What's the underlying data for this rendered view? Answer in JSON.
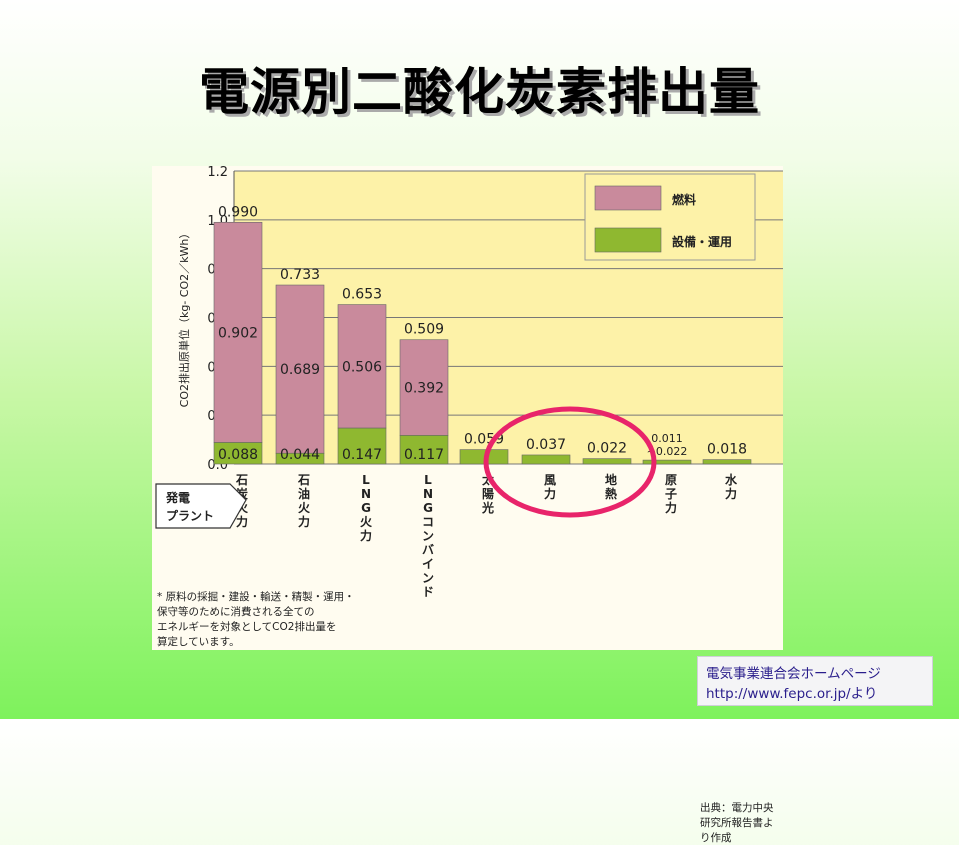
{
  "title": "電源別二酸化炭素排出量",
  "chart_data": {
    "type": "bar",
    "ylabel": "CO2排出原単位（kg- CO2／kWh）",
    "ylim": [
      0,
      1.2
    ],
    "yticks": [
      "0.0",
      "0.2",
      "0.4",
      "0.6",
      "0.8",
      "1.0",
      "1.2"
    ],
    "grid": true,
    "x_axis_title": "発電\nプラント",
    "categories": [
      "石炭火力",
      "石油火力",
      "LNG火力",
      "LNGコンバインド",
      "太陽光",
      "風力",
      "地熱",
      "原子力",
      "水力"
    ],
    "series": [
      {
        "name": "燃料",
        "color": "#c98a9c",
        "values": [
          0.902,
          0.689,
          0.506,
          0.392,
          0,
          0,
          0,
          0,
          0
        ],
        "labels": [
          "0.902",
          "0.689",
          "0.506",
          "0.392",
          "",
          "",
          "",
          "",
          ""
        ]
      },
      {
        "name": "設備・運用",
        "color": "#8fb830",
        "values": [
          0.088,
          0.044,
          0.147,
          0.117,
          0.059,
          0.037,
          0.022,
          0.016,
          0.018
        ],
        "labels": [
          "0.088",
          "0.044",
          "0.147",
          "0.117",
          "",
          "",
          "",
          "",
          ""
        ]
      }
    ],
    "totals": [
      "0.990",
      "0.733",
      "0.653",
      "0.509",
      "0.059",
      "0.037",
      "0.022",
      "0.011\n~0.022",
      "0.018"
    ],
    "legend_position": "top-right",
    "annotation": "circle around 太陽光, 風力, 地熱",
    "annotation_color": "#e8246a",
    "background": "#fdf2a8"
  },
  "footnote": "* 原料の採掘・建設・輸送・精製・運用・\n保守等のために消費される全ての\nエネルギーを対象としてCO2排出量を\n算定しています。",
  "source": "出典：電力中央研究所報告書より作成",
  "credit": {
    "line1": "電気事業連合会ホームページ",
    "line2": "http://www.fepc.or.jp/より"
  }
}
